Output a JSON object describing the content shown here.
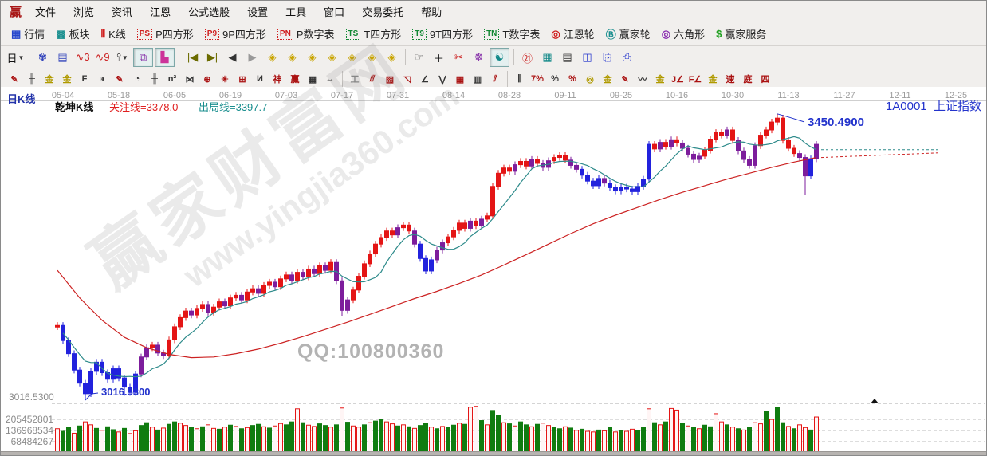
{
  "menu_bar": {
    "logo": "赢",
    "items": [
      "文件",
      "浏览",
      "资讯",
      "江恩",
      "公式选股",
      "设置",
      "工具",
      "窗口",
      "交易委托",
      "帮助"
    ]
  },
  "toolbar_main": {
    "items": [
      {
        "name": "quotes",
        "glyph": "▦",
        "color": "#2244cc",
        "label": "行情"
      },
      {
        "name": "sectors",
        "glyph": "▩",
        "color": "#1b8f8f",
        "label": "板块"
      },
      {
        "name": "kline",
        "glyph": "⫴",
        "color": "#d02020",
        "label": "K线"
      },
      {
        "name": "p-square",
        "badge": "PS",
        "color": "#d02020",
        "label": "P四方形"
      },
      {
        "name": "9p-square",
        "badge": "P9",
        "color": "#d02020",
        "label": "9P四方形"
      },
      {
        "name": "p-number-table",
        "badge": "PN",
        "color": "#d02020",
        "label": "P数字表"
      },
      {
        "name": "t-square",
        "badge": "TS",
        "color": "#118833",
        "label": "T四方形"
      },
      {
        "name": "9t-square",
        "badge": "T9",
        "color": "#118833",
        "label": "9T四方形"
      },
      {
        "name": "t-number-table",
        "badge": "TN",
        "color": "#118833",
        "label": "T数字表"
      },
      {
        "name": "gann-wheel",
        "glyph": "◎",
        "color": "#d02020",
        "label": "江恩轮"
      },
      {
        "name": "winner-wheel",
        "glyph": "Ⓑ",
        "color": "#1b8f8f",
        "label": "赢家轮"
      },
      {
        "name": "hexagon",
        "glyph": "◎",
        "color": "#8a2bb0",
        "label": "六角形"
      },
      {
        "name": "winner-service",
        "glyph": "$",
        "color": "#22a022",
        "label": "赢家服务"
      }
    ]
  },
  "toolbar_nav": {
    "items": [
      {
        "name": "period-day",
        "glyph": "日",
        "color": "#111",
        "dd": true
      },
      {
        "sep": true
      },
      {
        "name": "lace-pattern",
        "glyph": "✾",
        "color": "#3344bb"
      },
      {
        "name": "notes-doc",
        "glyph": "▤",
        "color": "#3344bb"
      },
      {
        "name": "wave-3",
        "glyph": "∿3",
        "color": "#cc2222"
      },
      {
        "name": "wave-9",
        "glyph": "∿9",
        "color": "#cc2222"
      },
      {
        "name": "candle-style",
        "glyph": "⫯",
        "color": "#111",
        "dd": true
      },
      {
        "name": "pattern-select",
        "glyph": "⧉",
        "color": "#8833aa",
        "sel": true
      },
      {
        "name": "color-histogram",
        "glyph": "▙",
        "color": "#cc3399",
        "sel": true
      },
      {
        "sep": true
      },
      {
        "name": "go-first",
        "glyph": "|◀",
        "color": "#6b6b00"
      },
      {
        "name": "go-last",
        "glyph": "▶|",
        "color": "#6b6b00"
      },
      {
        "name": "go-prev",
        "glyph": "◀",
        "color": "#333333"
      },
      {
        "name": "go-next",
        "glyph": "▶",
        "color": "#999999"
      },
      {
        "name": "diamond-left",
        "glyph": "◈",
        "color": "#c9a400"
      },
      {
        "name": "diamond-right",
        "glyph": "◈",
        "color": "#c9a400"
      },
      {
        "name": "diamond-in",
        "glyph": "◈",
        "color": "#c9a400"
      },
      {
        "name": "diamond-out",
        "glyph": "◈",
        "color": "#c9a400"
      },
      {
        "name": "diamond-compress",
        "glyph": "◈",
        "color": "#c9a400"
      },
      {
        "name": "diamond-expand",
        "glyph": "◈",
        "color": "#c9a400"
      },
      {
        "name": "diamond-fit",
        "glyph": "◈",
        "color": "#c9a400"
      },
      {
        "sep": true
      },
      {
        "name": "hand-tool",
        "glyph": "☞",
        "color": "#333333"
      },
      {
        "name": "crosshair",
        "glyph": "＋",
        "color": "#111"
      },
      {
        "name": "cut-line",
        "glyph": "✂",
        "color": "#cc2222"
      },
      {
        "name": "gann-symbol",
        "glyph": "☸",
        "color": "#8833aa"
      },
      {
        "name": "brain-analysis",
        "glyph": "☯",
        "color": "#118888",
        "sel": true
      },
      {
        "sep": true
      },
      {
        "name": "calendar-21",
        "glyph": "㉑",
        "color": "#cc2222"
      },
      {
        "name": "calculator",
        "glyph": "▦",
        "color": "#118888"
      },
      {
        "name": "notebook",
        "glyph": "▤",
        "color": "#333333"
      },
      {
        "name": "save-disk",
        "glyph": "◫",
        "color": "#2233cc"
      },
      {
        "name": "share",
        "glyph": "⎘",
        "color": "#2233cc"
      },
      {
        "name": "printer",
        "glyph": "⎙",
        "color": "#2233cc"
      }
    ]
  },
  "toolbar_draw": {
    "items": [
      {
        "name": "brush",
        "glyph": "✎",
        "color": "#aa1111"
      },
      {
        "name": "ruler-grid",
        "glyph": "╫",
        "color": "#333333"
      },
      {
        "name": "gold-grid-1",
        "glyph": "金",
        "color": "#b09a00"
      },
      {
        "name": "gold-grid-2",
        "glyph": "金",
        "color": "#b09a00"
      },
      {
        "name": "f-grid",
        "glyph": "F",
        "color": "#333333"
      },
      {
        "name": "spiral-grid",
        "glyph": "϶",
        "color": "#333333"
      },
      {
        "name": "brush-2",
        "glyph": "✎",
        "color": "#aa1111"
      },
      {
        "name": "clock-cycle",
        "glyph": "◔",
        "color": "#333333"
      },
      {
        "name": "comb-grid",
        "glyph": "╫",
        "color": "#333333"
      },
      {
        "name": "n2-grid",
        "glyph": "n²",
        "color": "#333333"
      },
      {
        "name": "angle-tool",
        "glyph": "⋈",
        "color": "#333333"
      },
      {
        "name": "target-circle",
        "glyph": "⊕",
        "color": "#aa1111"
      },
      {
        "name": "starburst",
        "glyph": "✳",
        "color": "#aa1111"
      },
      {
        "name": "web-grid",
        "glyph": "⊞",
        "color": "#aa1111"
      },
      {
        "name": "kline-mark",
        "glyph": "И",
        "color": "#333333"
      },
      {
        "name": "shen-grid",
        "glyph": "神",
        "color": "#aa1111"
      },
      {
        "name": "ying-grid",
        "glyph": "赢",
        "color": "#aa1111"
      },
      {
        "name": "dense-grid",
        "glyph": "▦",
        "color": "#333333"
      },
      {
        "name": "h-span",
        "glyph": "↔",
        "color": "#333333"
      },
      {
        "sep": true
      },
      {
        "name": "frame-tool",
        "glyph": "工",
        "color": "#888888"
      },
      {
        "name": "fan-lines",
        "glyph": "⫻",
        "color": "#aa1111"
      },
      {
        "name": "pattern-box",
        "glyph": "▨",
        "color": "#aa1111"
      },
      {
        "name": "fan-box",
        "glyph": "◹",
        "color": "#aa1111"
      },
      {
        "name": "trend-lines",
        "glyph": "∠",
        "color": "#333333"
      },
      {
        "name": "zigzag",
        "glyph": "⋁",
        "color": "#333333"
      },
      {
        "name": "grid-box-a",
        "glyph": "▦",
        "color": "#aa1111"
      },
      {
        "name": "grid-box-b",
        "glyph": "▥",
        "color": "#333333"
      },
      {
        "name": "parallel-lines",
        "glyph": "⫽",
        "color": "#aa1111"
      },
      {
        "sep": true
      },
      {
        "name": "scale-bars",
        "glyph": "⫼",
        "color": "#333333"
      },
      {
        "name": "percent-7",
        "glyph": "7%",
        "color": "#aa1111"
      },
      {
        "name": "percent",
        "glyph": "%",
        "color": "#333333"
      },
      {
        "name": "percent-line",
        "glyph": "%",
        "color": "#aa1111"
      },
      {
        "name": "gold-ring",
        "glyph": "◎",
        "color": "#b09a00"
      },
      {
        "name": "gold-lines",
        "glyph": "金",
        "color": "#b09a00"
      },
      {
        "name": "ink-brush",
        "glyph": "✎",
        "color": "#aa1111"
      },
      {
        "name": "gold-wave",
        "glyph": "〰",
        "color": "#333333"
      },
      {
        "name": "gold-bars",
        "glyph": "金",
        "color": "#b09a00"
      },
      {
        "name": "j-slope",
        "glyph": "J∠",
        "color": "#aa1111"
      },
      {
        "name": "f-slope",
        "glyph": "F∠",
        "color": "#aa1111"
      },
      {
        "name": "gold-slope",
        "glyph": "金",
        "color": "#b09a00"
      },
      {
        "name": "speed-slope",
        "glyph": "速",
        "color": "#aa1111"
      },
      {
        "name": "ting-slope",
        "glyph": "庭",
        "color": "#aa1111"
      },
      {
        "name": "four-slope",
        "glyph": "四",
        "color": "#aa1111"
      }
    ]
  },
  "chart": {
    "panel_label": "日K线",
    "indicator_name": "乾坤K线",
    "attention_line": "关注线=3378.0",
    "exit_line": "出局线=3397.7",
    "symbol_code": "1A0001",
    "symbol_name": "上证指数",
    "low_annotation": "3016.5300",
    "high_annotation": "3450.4900",
    "axis_price_label": "3016.5300",
    "volume_axis": [
      "205452801",
      "136968534",
      "68484267"
    ],
    "watermark_line1": "赢家财富网",
    "watermark_line2": "www.yingjia360.com",
    "qq_text": "QQ:100800360"
  },
  "chart_data": {
    "type": "candlestick+volume",
    "title": "1A0001 上证指数 日K线 (乾坤K线)",
    "x_tick_dates": [
      "05-04",
      "05-18",
      "06-05",
      "06-19",
      "07-03",
      "07-17",
      "07-31",
      "08-14",
      "08-28",
      "09-11",
      "09-25",
      "10-16",
      "10-30",
      "11-13",
      "11-27",
      "12-11",
      "12-25"
    ],
    "price_ref_line": 3016.53,
    "low_marker": {
      "index": 5,
      "value": 3016.53
    },
    "high_marker": {
      "index": 129,
      "value": 3450.49
    },
    "ylim_price": [
      3000,
      3470
    ],
    "volume_gridlines": [
      205452801,
      136968534,
      68484267
    ],
    "closes": [
      3128,
      3105,
      3085,
      3060,
      3040,
      3024,
      3058,
      3072,
      3056,
      3046,
      3062,
      3048,
      3034,
      3026,
      3054,
      3080,
      3094,
      3098,
      3086,
      3082,
      3106,
      3126,
      3140,
      3150,
      3144,
      3154,
      3160,
      3148,
      3156,
      3164,
      3158,
      3170,
      3174,
      3167,
      3179,
      3184,
      3177,
      3189,
      3194,
      3187,
      3199,
      3205,
      3197,
      3209,
      3202,
      3214,
      3207,
      3219,
      3212,
      3224,
      3196,
      3151,
      3167,
      3182,
      3203,
      3222,
      3237,
      3252,
      3262,
      3272,
      3266,
      3277,
      3281,
      3272,
      3252,
      3230,
      3211,
      3228,
      3243,
      3254,
      3263,
      3273,
      3284,
      3276,
      3287,
      3280,
      3290,
      3295,
      3340,
      3360,
      3368,
      3363,
      3373,
      3378,
      3371,
      3381,
      3375,
      3369,
      3379,
      3384,
      3387,
      3380,
      3372,
      3366,
      3357,
      3348,
      3341,
      3352,
      3345,
      3338,
      3333,
      3339,
      3336,
      3332,
      3340,
      3351,
      3404,
      3397,
      3407,
      3401,
      3411,
      3406,
      3398,
      3389,
      3381,
      3386,
      3395,
      3412,
      3422,
      3418,
      3426,
      3410,
      3394,
      3381,
      3372,
      3402,
      3418,
      3426,
      3438,
      3444,
      3410,
      3398,
      3390,
      3384,
      3356,
      3382,
      3404
    ],
    "candle_colors": "rbbbbbbbbbbbbbbpprpprrrrprrprrprrprrprrprrprprprprppprrrrrrrrprrpbbbpprrrrprprrrrrprrprpprrrppbbbbpbbbbbbbbrprprpppprrrrprpppprrrrrrrppbpp",
    "special_wicks": {
      "5": {
        "low": 3016.53
      },
      "12": {
        "low": 3021
      },
      "51": {
        "low": 3142
      },
      "129": {
        "high": 3450.49
      },
      "134": {
        "low": 3327
      }
    },
    "volumes_millions": [
      148,
      132,
      155,
      120,
      165,
      190,
      172,
      150,
      138,
      160,
      142,
      128,
      150,
      118,
      135,
      168,
      185,
      158,
      140,
      152,
      175,
      190,
      182,
      168,
      155,
      148,
      160,
      172,
      150,
      145,
      158,
      170,
      162,
      148,
      155,
      168,
      175,
      160,
      152,
      165,
      180,
      172,
      190,
      270,
      185,
      170,
      162,
      178,
      168,
      158,
      172,
      275,
      188,
      165,
      158,
      172,
      185,
      195,
      205,
      190,
      178,
      165,
      172,
      160,
      150,
      168,
      180,
      158,
      148,
      162,
      155,
      170,
      182,
      175,
      280,
      285,
      198,
      172,
      260,
      230,
      185,
      178,
      165,
      190,
      172,
      160,
      175,
      182,
      168,
      155,
      148,
      160,
      152,
      138,
      145,
      132,
      128,
      140,
      135,
      158,
      128,
      138,
      132,
      145,
      138,
      158,
      270,
      185,
      172,
      190,
      272,
      262,
      182,
      165,
      158,
      148,
      170,
      160,
      240,
      190,
      172,
      158,
      148,
      140,
      155,
      185,
      178,
      255,
      205,
      278,
      185,
      162,
      148,
      172,
      155,
      140,
      220
    ],
    "volume_colors": "rggrgrrgrggrgrrggrgrggrrgrgrrgrgrgrggrgrrggrgrrggrgrgrrgrggrrgrgrggrgrggrgrrgrggrgrggrgrrggrgrgrrgrgrgrrggrgrgrrgrgrggrrgrgrgrrgrggrgrrgrg",
    "ma_long_red_anchors": [
      0,
      3212,
      4,
      3170,
      8,
      3136,
      12,
      3110,
      16,
      3094,
      20,
      3084,
      24,
      3079,
      28,
      3080,
      32,
      3085,
      36,
      3092,
      40,
      3101,
      44,
      3111,
      48,
      3122,
      52,
      3133,
      56,
      3145,
      60,
      3157,
      64,
      3169,
      68,
      3180,
      72,
      3192,
      76,
      3205,
      80,
      3220,
      84,
      3236,
      88,
      3252,
      92,
      3268,
      96,
      3283,
      100,
      3296,
      104,
      3308,
      108,
      3320,
      112,
      3331,
      116,
      3341,
      120,
      3351,
      124,
      3360,
      128,
      3369,
      132,
      3377,
      136,
      3384
    ],
    "ma_short_teal": "sma8_of_closes",
    "colors": {
      "up_red": "#e41515",
      "down_blue": "#2222dd",
      "neutral_purple": "#7d1d9c",
      "vol_green": "#107c10",
      "ma_teal": "#2e8b8b",
      "ma_red": "#cc2222",
      "annotation_blue": "#2333cc"
    }
  }
}
